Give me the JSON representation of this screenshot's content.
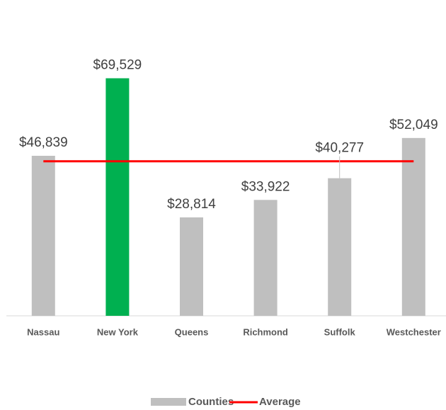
{
  "chart_data": {
    "type": "bar",
    "categories": [
      "Nassau",
      "New York",
      "Queens",
      "Richmond",
      "Suffolk",
      "Westchester"
    ],
    "series": [
      {
        "name": "Counties",
        "color": "#bfbfbf",
        "colors": [
          "#bfbfbf",
          "#00b050",
          "#bfbfbf",
          "#bfbfbf",
          "#bfbfbf",
          "#bfbfbf"
        ],
        "values": [
          46839,
          69529,
          28814,
          33922,
          40277,
          52049
        ],
        "value_labels": [
          "$46,839",
          "$69,529",
          "$28,814",
          "$33,922",
          "$40,277",
          "$52,049"
        ]
      },
      {
        "name": "Average",
        "type": "line",
        "color": "#ff0000",
        "values": [
          45238,
          45238,
          45238,
          45238,
          45238,
          45238
        ]
      }
    ],
    "ylim": [
      0,
      80000
    ],
    "legend": "bottom"
  }
}
